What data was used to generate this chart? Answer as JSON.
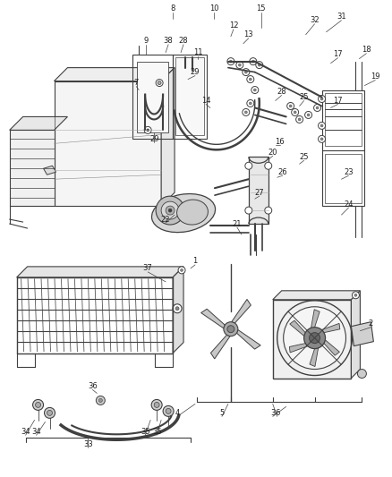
{
  "bg_color": "#ffffff",
  "line_color": "#404040",
  "label_color": "#202020",
  "fig_width": 4.38,
  "fig_height": 5.33,
  "dpi": 100
}
